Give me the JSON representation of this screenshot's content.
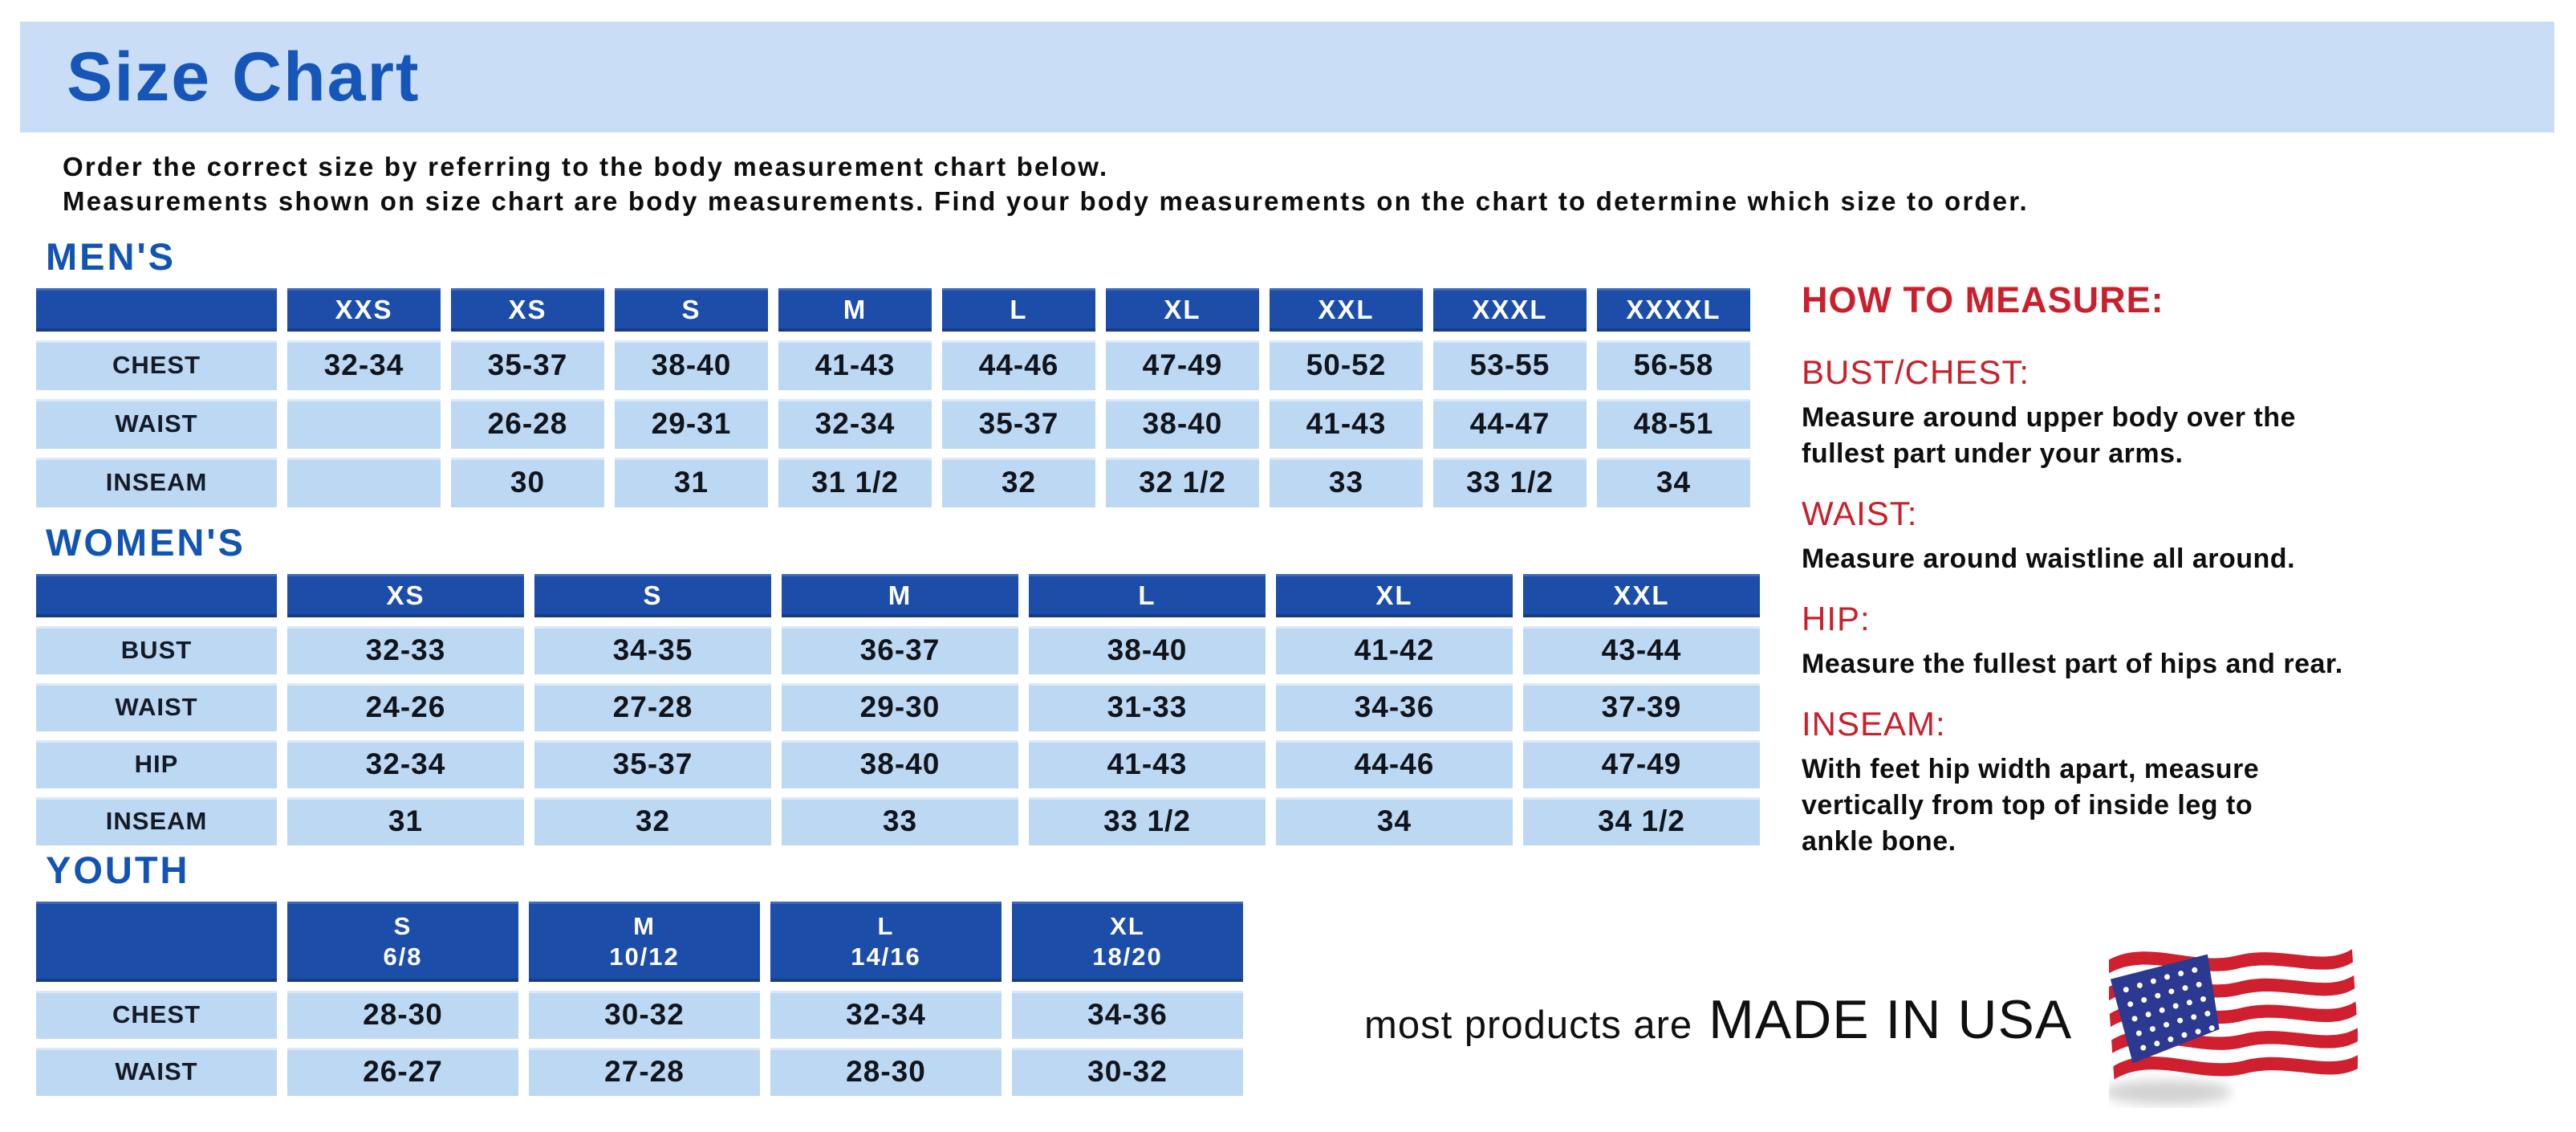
{
  "page": {
    "title": "Size Chart"
  },
  "intro": {
    "line1": "Order the correct size by referring to the body measurement chart below.",
    "line2": "Measurements shown on size chart are body measurements.  Find your body measurements on the chart to determine which size to order."
  },
  "tables": {
    "mens": {
      "section_label": "MEN'S",
      "columns": [
        "",
        "XXS",
        "XS",
        "S",
        "M",
        "L",
        "XL",
        "XXL",
        "XXXL",
        "XXXXL"
      ],
      "rows": [
        {
          "label": "CHEST",
          "values": [
            "32-34",
            "35-37",
            "38-40",
            "41-43",
            "44-46",
            "47-49",
            "50-52",
            "53-55",
            "56-58"
          ]
        },
        {
          "label": "WAIST",
          "values": [
            "",
            "26-28",
            "29-31",
            "32-34",
            "35-37",
            "38-40",
            "41-43",
            "44-47",
            "48-51"
          ]
        },
        {
          "label": "INSEAM",
          "values": [
            "",
            "30",
            "31",
            "31 1/2",
            "32",
            "32 1/2",
            "33",
            "33 1/2",
            "34"
          ]
        }
      ]
    },
    "womens": {
      "section_label": "WOMEN'S",
      "columns": [
        "",
        "XS",
        "S",
        "M",
        "L",
        "XL",
        "XXL"
      ],
      "rows": [
        {
          "label": "BUST",
          "values": [
            "32-33",
            "34-35",
            "36-37",
            "38-40",
            "41-42",
            "43-44"
          ]
        },
        {
          "label": "WAIST",
          "values": [
            "24-26",
            "27-28",
            "29-30",
            "31-33",
            "34-36",
            "37-39"
          ]
        },
        {
          "label": "HIP",
          "values": [
            "32-34",
            "35-37",
            "38-40",
            "41-43",
            "44-46",
            "47-49"
          ]
        },
        {
          "label": "INSEAM",
          "values": [
            "31",
            "32",
            "33",
            "33 1/2",
            "34",
            "34 1/2"
          ]
        }
      ]
    },
    "youth": {
      "section_label": "YOUTH",
      "columns": [
        "",
        {
          "size": "S",
          "range": "6/8"
        },
        {
          "size": "M",
          "range": "10/12"
        },
        {
          "size": "L",
          "range": "14/16"
        },
        {
          "size": "XL",
          "range": "18/20"
        }
      ],
      "rows": [
        {
          "label": "CHEST",
          "values": [
            "28-30",
            "30-32",
            "32-34",
            "34-36"
          ]
        },
        {
          "label": "WAIST",
          "values": [
            "26-27",
            "27-28",
            "28-30",
            "30-32"
          ]
        }
      ]
    }
  },
  "how_to_measure": {
    "title": "HOW TO MEASURE:",
    "items": [
      {
        "label": "BUST/CHEST:",
        "text": "Measure around upper body over the\nfullest part under your arms."
      },
      {
        "label": "WAIST:",
        "text": "Measure around waistline all around."
      },
      {
        "label": "HIP:",
        "text": "Measure the fullest part of hips and rear."
      },
      {
        "label": "INSEAM:",
        "text": "With feet hip width apart, measure\nvertically from top of inside leg to\nankle bone."
      }
    ]
  },
  "footer": {
    "prefix": "most products are",
    "emphasis": "MADE IN USA",
    "flag_icon": "usa-flag-icon"
  },
  "colors": {
    "title_band_blue": "#c9ddf6",
    "title_text_blue": "#1656b8",
    "section_heading_blue": "#1254b4",
    "table_header_blue": "#1c4da8",
    "table_cell_blue": "#bdd8f2",
    "heading_red": "#c9202c",
    "flag_red": "#d01f2e",
    "flag_navy": "#2b3990"
  }
}
